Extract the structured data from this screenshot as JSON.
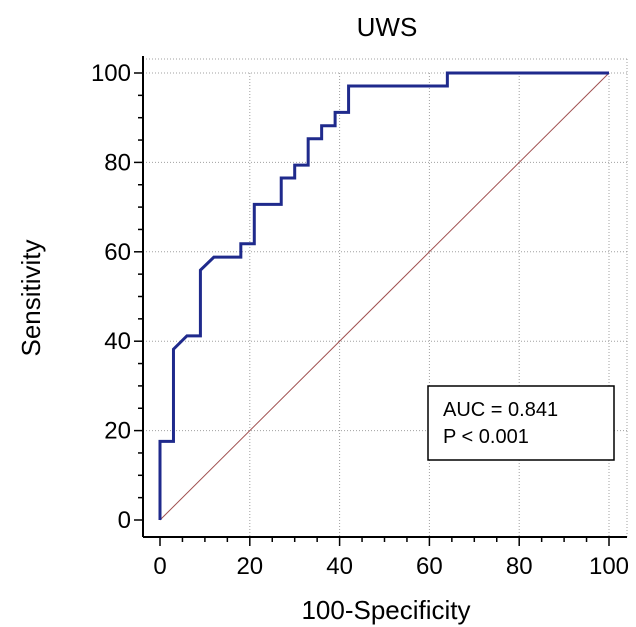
{
  "chart_data": {
    "type": "line",
    "title": "UWS",
    "xlabel": "100-Specificity",
    "ylabel": "Sensitivity",
    "xlim": [
      0,
      100
    ],
    "ylim": [
      0,
      100
    ],
    "xticks": [
      "0",
      "20",
      "40",
      "60",
      "80",
      "100"
    ],
    "yticks": [
      "0",
      "20",
      "40",
      "60",
      "80",
      "100"
    ],
    "grid": true,
    "series": [
      {
        "color": "#1f2a8c",
        "x": [
          0,
          0,
          3,
          3,
          6,
          9,
          9,
          12,
          18,
          18,
          21,
          21,
          27,
          27,
          30,
          30,
          33,
          33,
          36,
          36,
          39,
          39,
          42,
          42,
          64,
          64,
          100
        ],
        "y": [
          0,
          17.6,
          17.6,
          38.2,
          41.2,
          41.2,
          55.9,
          58.8,
          58.8,
          61.8,
          61.8,
          70.6,
          70.6,
          76.5,
          76.5,
          79.4,
          79.4,
          85.3,
          85.3,
          88.2,
          88.2,
          91.2,
          91.2,
          97.1,
          97.1,
          100,
          100
        ]
      },
      {
        "color": "#a05050",
        "x": [
          0,
          100
        ],
        "y": [
          0,
          100
        ]
      }
    ],
    "annotations": {
      "auc": "AUC = 0.841",
      "p": "P < 0.001"
    }
  }
}
